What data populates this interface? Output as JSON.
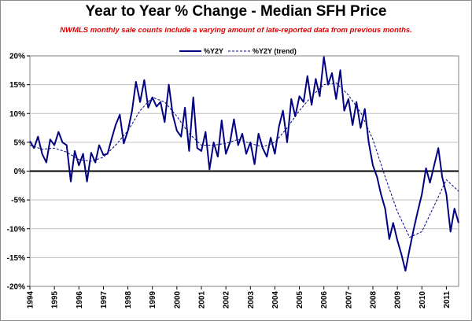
{
  "chart_data": {
    "type": "line",
    "title": "Year to Year % Change - Median SFH Price",
    "subtitle": "NWMLS monthly sale counts include a varying amount of late-reported data from previous months.",
    "xlabel": "",
    "ylabel": "",
    "ylim": [
      -20,
      20
    ],
    "xlim": [
      1994.0,
      2011.5
    ],
    "y_ticks": [
      "20%",
      "15%",
      "10%",
      "5%",
      "0%",
      "-5%",
      "-10%",
      "-15%",
      "-20%"
    ],
    "y_tick_values": [
      20,
      15,
      10,
      5,
      0,
      -5,
      -10,
      -15,
      -20
    ],
    "x_ticks": [
      "1994",
      "1995",
      "1996",
      "1997",
      "1998",
      "1999",
      "2000",
      "2001",
      "2002",
      "2003",
      "2004",
      "2005",
      "2006",
      "2007",
      "2008",
      "2009",
      "2010",
      "2011"
    ],
    "x_tick_values": [
      1994,
      1995,
      1996,
      1997,
      1998,
      1999,
      2000,
      2001,
      2002,
      2003,
      2004,
      2005,
      2006,
      2007,
      2008,
      2009,
      2010,
      2011
    ],
    "grid": true,
    "legend_position": "top-center",
    "colors": {
      "series": "#000080",
      "trend": "#000080",
      "zero_line": "#000000",
      "grid": "#c0c0c0",
      "subtitle": "#e00000"
    },
    "series": [
      {
        "name": "%Y2Y",
        "style": "solid",
        "points": [
          [
            1994.0,
            5.2
          ],
          [
            1994.17,
            4.0
          ],
          [
            1994.33,
            6.0
          ],
          [
            1994.5,
            3.0
          ],
          [
            1994.67,
            1.5
          ],
          [
            1994.83,
            5.5
          ],
          [
            1995.0,
            4.5
          ],
          [
            1995.17,
            6.8
          ],
          [
            1995.33,
            5.0
          ],
          [
            1995.5,
            4.5
          ],
          [
            1995.67,
            -1.8
          ],
          [
            1995.83,
            3.5
          ],
          [
            1996.0,
            1.0
          ],
          [
            1996.17,
            3.0
          ],
          [
            1996.33,
            -1.8
          ],
          [
            1996.5,
            3.2
          ],
          [
            1996.67,
            1.5
          ],
          [
            1996.83,
            4.5
          ],
          [
            1997.0,
            2.8
          ],
          [
            1997.17,
            3.0
          ],
          [
            1997.33,
            5.5
          ],
          [
            1997.5,
            8.0
          ],
          [
            1997.67,
            9.8
          ],
          [
            1997.83,
            4.8
          ],
          [
            1998.0,
            7.0
          ],
          [
            1998.17,
            10.5
          ],
          [
            1998.33,
            15.5
          ],
          [
            1998.5,
            12.0
          ],
          [
            1998.67,
            15.8
          ],
          [
            1998.83,
            11.0
          ],
          [
            1999.0,
            12.8
          ],
          [
            1999.17,
            11.2
          ],
          [
            1999.33,
            12.0
          ],
          [
            1999.5,
            8.5
          ],
          [
            1999.67,
            15.0
          ],
          [
            1999.83,
            9.8
          ],
          [
            2000.0,
            7.0
          ],
          [
            2000.17,
            6.0
          ],
          [
            2000.33,
            11.0
          ],
          [
            2000.5,
            3.5
          ],
          [
            2000.67,
            12.8
          ],
          [
            2000.83,
            4.0
          ],
          [
            2001.0,
            3.5
          ],
          [
            2001.17,
            6.8
          ],
          [
            2001.33,
            0.3
          ],
          [
            2001.5,
            5.0
          ],
          [
            2001.67,
            2.5
          ],
          [
            2001.83,
            8.8
          ],
          [
            2002.0,
            3.0
          ],
          [
            2002.17,
            5.0
          ],
          [
            2002.33,
            9.0
          ],
          [
            2002.5,
            4.5
          ],
          [
            2002.67,
            6.5
          ],
          [
            2002.83,
            3.0
          ],
          [
            2003.0,
            5.0
          ],
          [
            2003.17,
            1.2
          ],
          [
            2003.33,
            6.5
          ],
          [
            2003.5,
            4.0
          ],
          [
            2003.67,
            2.5
          ],
          [
            2003.83,
            5.8
          ],
          [
            2004.0,
            3.0
          ],
          [
            2004.17,
            7.8
          ],
          [
            2004.33,
            10.5
          ],
          [
            2004.5,
            5.0
          ],
          [
            2004.67,
            12.5
          ],
          [
            2004.83,
            9.5
          ],
          [
            2005.0,
            13.0
          ],
          [
            2005.17,
            12.0
          ],
          [
            2005.33,
            16.5
          ],
          [
            2005.5,
            11.5
          ],
          [
            2005.67,
            16.0
          ],
          [
            2005.83,
            13.0
          ],
          [
            2006.0,
            19.8
          ],
          [
            2006.17,
            15.0
          ],
          [
            2006.33,
            17.0
          ],
          [
            2006.5,
            12.5
          ],
          [
            2006.67,
            17.5
          ],
          [
            2006.83,
            10.5
          ],
          [
            2007.0,
            12.5
          ],
          [
            2007.17,
            8.0
          ],
          [
            2007.33,
            12.0
          ],
          [
            2007.5,
            7.5
          ],
          [
            2007.67,
            10.8
          ],
          [
            2007.83,
            5.0
          ],
          [
            2008.0,
            1.0
          ],
          [
            2008.17,
            -1.0
          ],
          [
            2008.33,
            -4.0
          ],
          [
            2008.5,
            -6.5
          ],
          [
            2008.67,
            -11.8
          ],
          [
            2008.83,
            -9.0
          ],
          [
            2009.0,
            -12.0
          ],
          [
            2009.17,
            -14.5
          ],
          [
            2009.33,
            -17.3
          ],
          [
            2009.5,
            -13.5
          ],
          [
            2009.67,
            -10.0
          ],
          [
            2009.83,
            -7.0
          ],
          [
            2010.0,
            -4.0
          ],
          [
            2010.17,
            0.5
          ],
          [
            2010.33,
            -2.0
          ],
          [
            2010.5,
            1.0
          ],
          [
            2010.67,
            4.0
          ],
          [
            2010.83,
            -1.0
          ],
          [
            2011.0,
            -4.0
          ],
          [
            2011.17,
            -10.5
          ],
          [
            2011.33,
            -6.5
          ],
          [
            2011.5,
            -9.0
          ]
        ]
      },
      {
        "name": "%Y2Y (trend)",
        "style": "dashed",
        "points": [
          [
            1994.0,
            4.5
          ],
          [
            1994.5,
            3.8
          ],
          [
            1995.0,
            4.0
          ],
          [
            1995.5,
            3.3
          ],
          [
            1996.0,
            2.0
          ],
          [
            1996.5,
            1.7
          ],
          [
            1997.0,
            2.4
          ],
          [
            1997.5,
            4.5
          ],
          [
            1998.0,
            7.0
          ],
          [
            1998.5,
            10.5
          ],
          [
            1999.0,
            12.8
          ],
          [
            1999.5,
            12.0
          ],
          [
            2000.0,
            9.5
          ],
          [
            2000.5,
            6.5
          ],
          [
            2001.0,
            4.5
          ],
          [
            2001.5,
            4.5
          ],
          [
            2002.0,
            4.8
          ],
          [
            2002.5,
            5.5
          ],
          [
            2003.0,
            4.8
          ],
          [
            2003.5,
            4.2
          ],
          [
            2004.0,
            5.0
          ],
          [
            2004.5,
            7.5
          ],
          [
            2005.0,
            10.5
          ],
          [
            2005.5,
            13.0
          ],
          [
            2006.0,
            15.0
          ],
          [
            2006.5,
            15.3
          ],
          [
            2007.0,
            13.2
          ],
          [
            2007.5,
            10.2
          ],
          [
            2008.0,
            5.5
          ],
          [
            2008.5,
            -1.0
          ],
          [
            2009.0,
            -7.0
          ],
          [
            2009.5,
            -11.5
          ],
          [
            2010.0,
            -10.5
          ],
          [
            2010.5,
            -6.0
          ],
          [
            2011.0,
            -1.5
          ],
          [
            2011.5,
            -3.5
          ]
        ]
      }
    ]
  }
}
